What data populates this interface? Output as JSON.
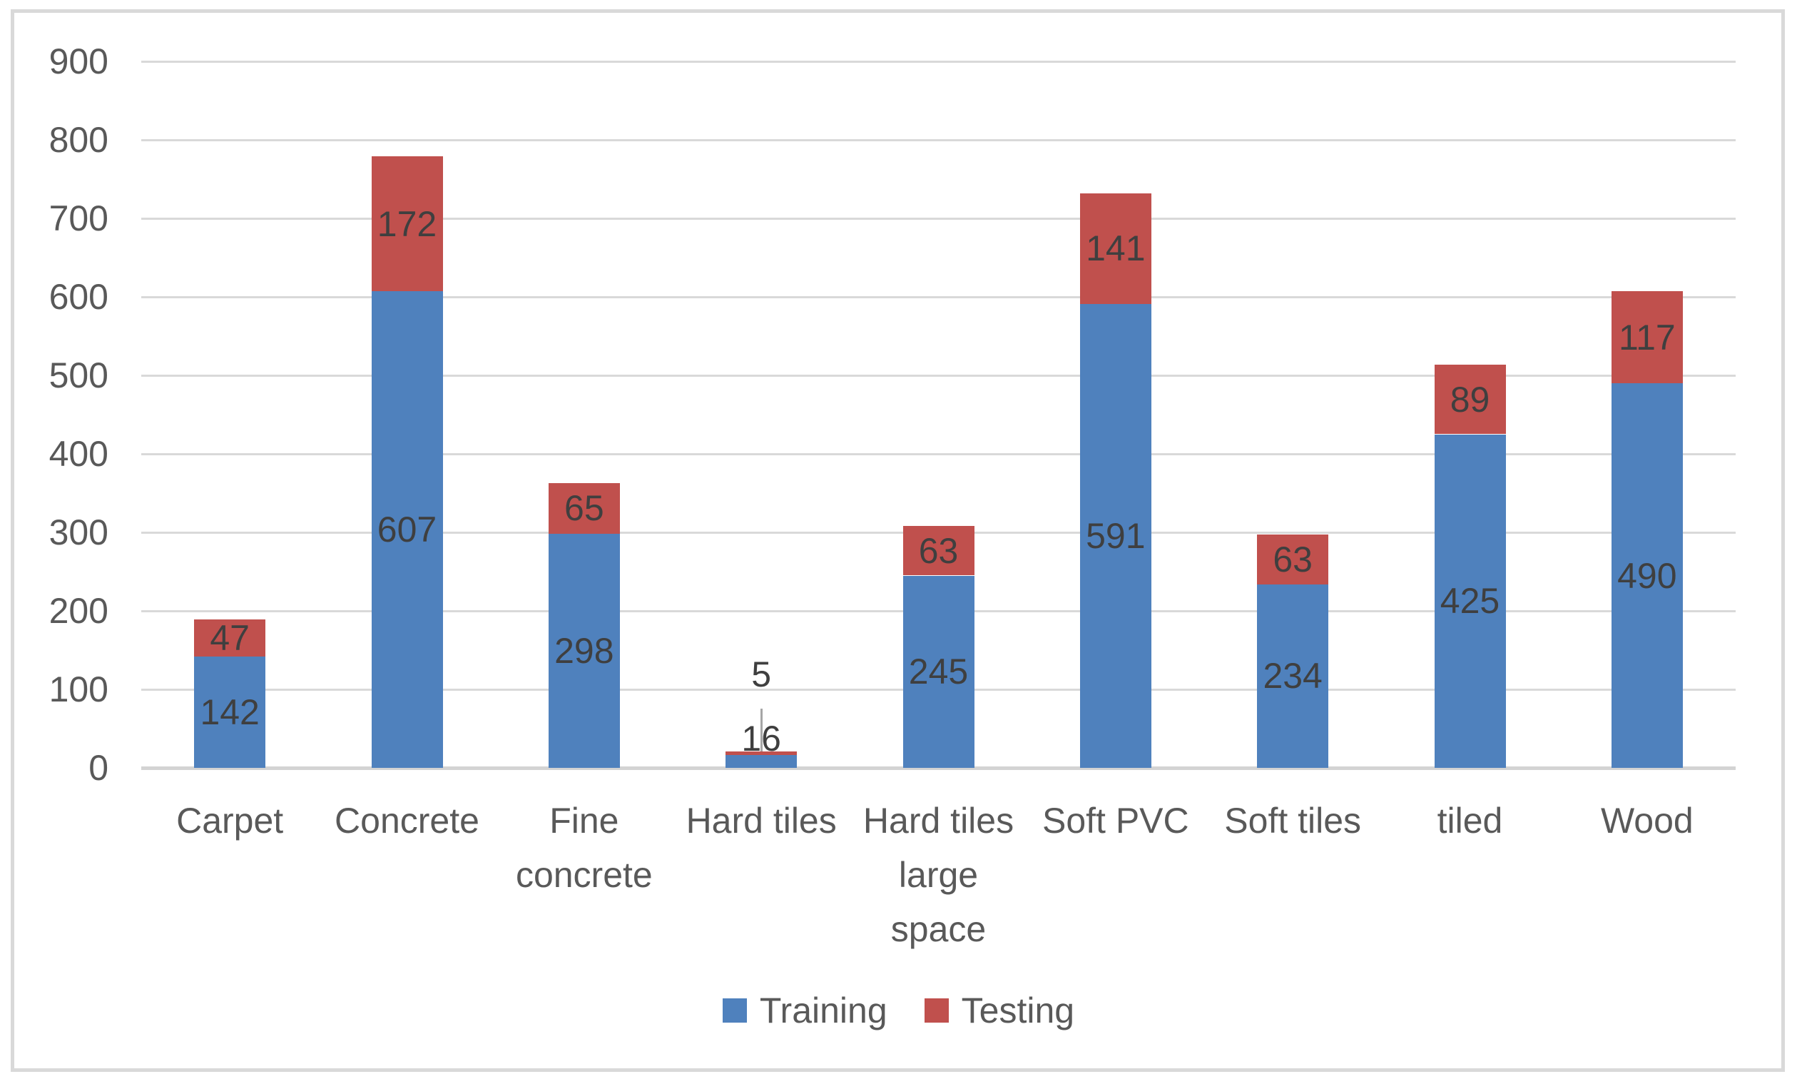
{
  "chart_data": {
    "type": "bar",
    "stacked": true,
    "title": "",
    "xlabel": "",
    "ylabel": "",
    "categories": [
      "Carpet",
      "Concrete",
      "Fine concrete",
      "Hard tiles",
      "Hard tiles large space",
      "Soft PVC",
      "Soft tiles",
      "tiled",
      "Wood"
    ],
    "category_display_lines": [
      [
        "Carpet"
      ],
      [
        "Concrete"
      ],
      [
        "Fine",
        "concrete"
      ],
      [
        "Hard tiles"
      ],
      [
        "Hard tiles",
        "large",
        "space"
      ],
      [
        "Soft PVC"
      ],
      [
        "Soft tiles"
      ],
      [
        "tiled"
      ],
      [
        "Wood"
      ]
    ],
    "series": [
      {
        "name": "Training",
        "color": "#4F81BD",
        "values": [
          142,
          607,
          298,
          16,
          245,
          591,
          234,
          425,
          490
        ]
      },
      {
        "name": "Testing",
        "color": "#C0504D",
        "values": [
          47,
          172,
          65,
          5,
          63,
          141,
          63,
          89,
          117
        ]
      }
    ],
    "data_labels_visible": true,
    "y_ticks": [
      0,
      100,
      200,
      300,
      400,
      500,
      600,
      700,
      800,
      900
    ],
    "ylim": [
      0,
      900
    ],
    "grid": true,
    "legend_position": "bottom",
    "legend_entries": [
      "Training",
      "Testing"
    ]
  },
  "colors": {
    "training": "#4F81BD",
    "testing": "#C0504D",
    "gridline": "#D9D9D9",
    "axis_line": "#D3D3D3",
    "frame_border": "#D9D9D9",
    "axis_text": "#595959",
    "data_label_text": "#3F3F3F",
    "leader_line": "#A6A6A6",
    "background": "#FFFFFF"
  }
}
